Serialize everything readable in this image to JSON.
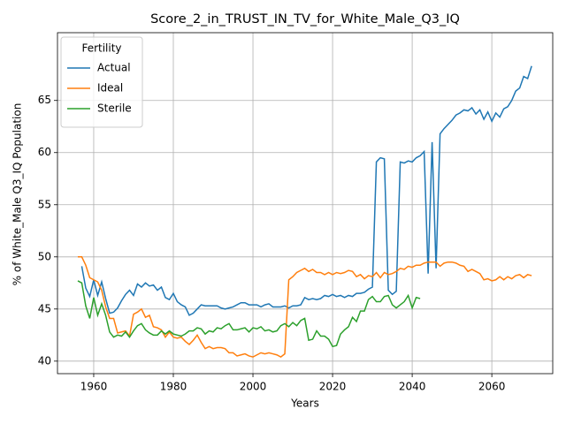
{
  "chart_data": {
    "type": "line",
    "title": "Score_2_in_TRUST_IN_TV_for_White_Male_Q3_IQ",
    "xlabel": "Years",
    "ylabel": "% of White_Male Q3_IQ Population",
    "legend_title": "Fertility",
    "legend_loc": "upper left",
    "grid": true,
    "xlim": [
      1950.9,
      2075.3
    ],
    "ylim": [
      38.8,
      71.5
    ],
    "xticks": [
      1960,
      1980,
      2000,
      2020,
      2040,
      2060
    ],
    "yticks": [
      40,
      45,
      50,
      55,
      60,
      65
    ],
    "x": [
      1956,
      1957,
      1958,
      1959,
      1960,
      1961,
      1962,
      1963,
      1964,
      1965,
      1966,
      1967,
      1968,
      1969,
      1970,
      1971,
      1972,
      1973,
      1974,
      1975,
      1976,
      1977,
      1978,
      1979,
      1980,
      1981,
      1982,
      1983,
      1984,
      1985,
      1986,
      1987,
      1988,
      1989,
      1990,
      1991,
      1992,
      1993,
      1994,
      1995,
      1996,
      1997,
      1998,
      1999,
      2000,
      2001,
      2002,
      2003,
      2004,
      2005,
      2006,
      2007,
      2008,
      2009,
      2010,
      2011,
      2012,
      2013,
      2014,
      2015,
      2016,
      2017,
      2018,
      2019,
      2020,
      2021,
      2022,
      2023,
      2024,
      2025,
      2026,
      2027,
      2028,
      2029,
      2030,
      2031,
      2032,
      2033,
      2034,
      2035,
      2036,
      2037,
      2038,
      2039,
      2040,
      2041,
      2042,
      2043,
      2044,
      2045,
      2046,
      2047,
      2048,
      2049,
      2050,
      2051,
      2052,
      2053,
      2054,
      2055,
      2056,
      2057,
      2058,
      2059,
      2060,
      2061,
      2062,
      2063,
      2064,
      2065,
      2066,
      2067,
      2068,
      2069,
      2070
    ],
    "series": [
      {
        "name": "Actual",
        "color": "#1f77b4",
        "values": [
          null,
          49.1,
          47,
          46.2,
          47.8,
          46.3,
          47.6,
          46,
          44.6,
          44.7,
          45.1,
          45.8,
          46.4,
          46.8,
          46.3,
          47.4,
          47.1,
          47.5,
          47.2,
          47.3,
          46.8,
          47.1,
          46.1,
          45.9,
          46.5,
          45.7,
          45.4,
          45.2,
          44.4,
          44.6,
          45.0,
          45.4,
          45.3,
          45.3,
          45.3,
          45.3,
          45.1,
          45.0,
          45.1,
          45.2,
          45.4,
          45.6,
          45.6,
          45.4,
          45.4,
          45.4,
          45.2,
          45.4,
          45.5,
          45.2,
          45.2,
          45.2,
          45.3,
          45.1,
          45.3,
          45.3,
          45.4,
          46.1,
          45.9,
          46.0,
          45.9,
          46.0,
          46.3,
          46.2,
          46.4,
          46.2,
          46.3,
          46.1,
          46.3,
          46.2,
          46.5,
          46.5,
          46.6,
          46.9,
          47.1,
          59.1,
          59.5,
          59.4,
          46.8,
          46.4,
          46.7,
          59.1,
          59.0,
          59.2,
          59.1,
          59.5,
          59.7,
          60.1,
          48.4,
          61.0,
          48.9,
          61.8,
          62.3,
          62.7,
          63.1,
          63.6,
          63.8,
          64.1,
          64.0,
          64.3,
          63.7,
          64.1,
          63.2,
          63.9,
          63.0,
          63.8,
          63.4,
          64.2,
          64.4,
          65.0,
          65.9,
          66.2,
          67.3,
          67.1,
          68.3
        ]
      },
      {
        "name": "Ideal",
        "color": "#ff7f0e",
        "values": [
          50.0,
          50.0,
          49.2,
          48.0,
          47.8,
          47.6,
          46.8,
          45.2,
          44.1,
          44.1,
          42.7,
          42.8,
          42.9,
          42.4,
          44.5,
          44.7,
          45.0,
          44.2,
          44.4,
          43.3,
          43.2,
          43.0,
          42.3,
          42.8,
          42.3,
          42.2,
          42.3,
          41.9,
          41.6,
          42.0,
          42.5,
          41.8,
          41.2,
          41.4,
          41.2,
          41.3,
          41.3,
          41.2,
          40.8,
          40.8,
          40.5,
          40.6,
          40.7,
          40.5,
          40.4,
          40.6,
          40.8,
          40.7,
          40.8,
          40.7,
          40.6,
          40.4,
          40.7,
          47.8,
          48.1,
          48.5,
          48.7,
          48.9,
          48.6,
          48.8,
          48.5,
          48.5,
          48.3,
          48.5,
          48.3,
          48.5,
          48.4,
          48.5,
          48.7,
          48.6,
          48.1,
          48.3,
          47.9,
          48.2,
          48.1,
          48.5,
          48.0,
          48.5,
          48.3,
          48.4,
          48.6,
          48.9,
          48.8,
          49.1,
          49.0,
          49.2,
          49.2,
          49.4,
          49.5,
          49.5,
          49.5,
          49.1,
          49.4,
          49.5,
          49.5,
          49.4,
          49.2,
          49.1,
          48.6,
          48.8,
          48.6,
          48.4,
          47.8,
          47.9,
          47.7,
          47.8,
          48.1,
          47.8,
          48.1,
          47.9,
          48.2,
          48.3,
          48.0,
          48.3,
          48.2
        ]
      },
      {
        "name": "Sterile",
        "color": "#2ca02c",
        "values": [
          47.7,
          47.5,
          45.3,
          44.1,
          46.1,
          44.4,
          45.5,
          44.4,
          42.8,
          42.3,
          42.5,
          42.4,
          42.8,
          42.3,
          42.9,
          43.4,
          43.6,
          43.0,
          42.7,
          42.5,
          42.5,
          42.9,
          42.6,
          42.9,
          42.6,
          42.5,
          42.4,
          42.6,
          42.9,
          42.9,
          43.2,
          43.1,
          42.6,
          42.9,
          42.8,
          43.2,
          43.1,
          43.4,
          43.6,
          43.0,
          43.0,
          43.1,
          43.2,
          42.8,
          43.2,
          43.1,
          43.3,
          42.9,
          43.0,
          42.8,
          42.9,
          43.4,
          43.6,
          43.3,
          43.7,
          43.4,
          43.9,
          44.1,
          42.0,
          42.1,
          42.9,
          42.4,
          42.4,
          42.1,
          41.4,
          41.5,
          42.6,
          43.0,
          43.3,
          44.2,
          43.8,
          44.8,
          44.8,
          45.9,
          46.2,
          45.7,
          45.7,
          46.2,
          46.3,
          45.4,
          45.1,
          45.4,
          45.7,
          46.3,
          45.1,
          46.1,
          46.0,
          null,
          null,
          null,
          null,
          null,
          null,
          null,
          null,
          null,
          null,
          null,
          null,
          null,
          null,
          null,
          null,
          null,
          null,
          null,
          null,
          null,
          null,
          null,
          null,
          null,
          null,
          null,
          null
        ]
      }
    ]
  }
}
